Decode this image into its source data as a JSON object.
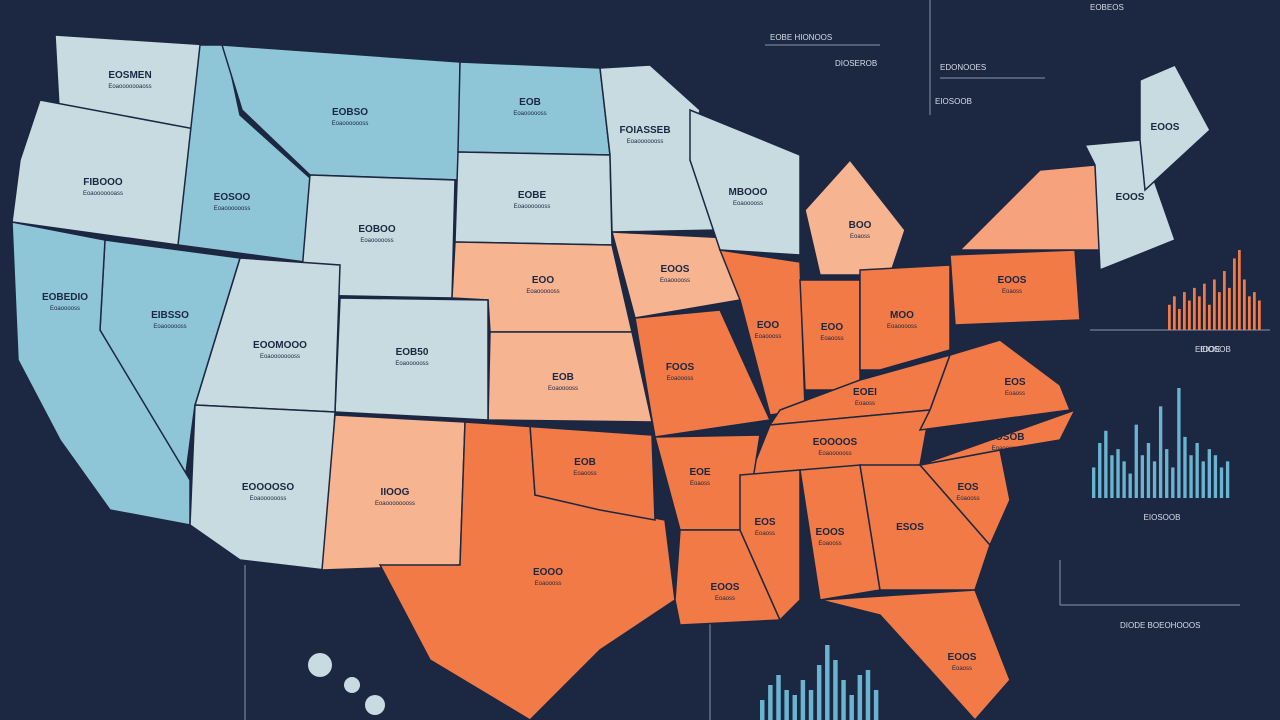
{
  "regions": [
    {
      "label": "EOSMEN",
      "sublabel": "Eoaooooooaoss",
      "color": "#c8dbe0"
    },
    {
      "label": "FIBOOO",
      "sublabel": "Eoaooooooass",
      "color": "#c8dbe0"
    },
    {
      "label": "EOSOO",
      "sublabel": "Eoaooooooss",
      "color": "#8ec6d7"
    },
    {
      "label": "EOBSO",
      "sublabel": "Eoaooooooss",
      "color": "#8ec6d7"
    },
    {
      "label": "EOB",
      "sublabel": "Eoaoooooss",
      "color": "#8ec6d7"
    },
    {
      "label": "EOBE",
      "sublabel": "Eoaooooooss",
      "color": "#c8dbe0"
    },
    {
      "label": "EOBOO",
      "sublabel": "Eoaoooooss",
      "color": "#c8dbe0"
    },
    {
      "label": "EOO",
      "sublabel": "Eoaoooooss",
      "color": "#f6b491"
    },
    {
      "label": "EOB",
      "sublabel": "Eoaooooss",
      "color": "#f6b491"
    },
    {
      "label": "EOB50",
      "sublabel": "Eoaoooooss",
      "color": "#c8dbe0"
    },
    {
      "label": "EOOMOOO",
      "sublabel": "Eoaoooooooss",
      "color": "#c8dbe0"
    },
    {
      "label": "EIBSSO",
      "sublabel": "Eoaoooooss",
      "color": "#8ec6d7"
    },
    {
      "label": "EOBEDIO",
      "sublabel": "Eoaooooss",
      "color": "#8ec6d7"
    },
    {
      "label": "EOOOOSO",
      "sublabel": "Eoaooooooss",
      "color": "#c8dbe0"
    },
    {
      "label": "IIOOG",
      "sublabel": "Eoaoooooooss",
      "color": "#f6b491"
    },
    {
      "label": "EOOO",
      "sublabel": "Eoaoooss",
      "color": "#f27a46"
    },
    {
      "label": "EOB",
      "sublabel": "Eoaooss",
      "color": "#f27a46"
    },
    {
      "label": "FOIASSEB",
      "sublabel": "Eoaooooooss",
      "color": "#c8dbe0"
    },
    {
      "label": "EOOS",
      "sublabel": "Eoaooooss",
      "color": "#f6b491"
    },
    {
      "label": "FOOS",
      "sublabel": "Eoaoooss",
      "color": "#f27a46"
    },
    {
      "label": "MBOOO",
      "sublabel": "Eoaooooss",
      "color": "#c8dbe0"
    },
    {
      "label": "BOO",
      "sublabel": "Eoaoss",
      "color": "#f6b491"
    },
    {
      "label": "EOO",
      "sublabel": "Eoaoooss",
      "color": "#f27a46"
    },
    {
      "label": "EOO",
      "sublabel": "Eoaooss",
      "color": "#f27a46"
    },
    {
      "label": "MOO",
      "sublabel": "Eoaooooss",
      "color": "#f27a46"
    },
    {
      "label": "EOEI",
      "sublabel": "Eoaoss",
      "color": "#f27a46"
    },
    {
      "label": "EOOOOS",
      "sublabel": "Eoaoooooss",
      "color": "#f27a46"
    },
    {
      "label": "EOE",
      "sublabel": "Eoaoss",
      "color": "#f27a46"
    },
    {
      "label": "EOOS",
      "sublabel": "Eoaoss",
      "color": "#f27a46"
    },
    {
      "label": "EOS",
      "sublabel": "Eoaoss",
      "color": "#f27a46"
    },
    {
      "label": "EOOS",
      "sublabel": "Eoaooss",
      "color": "#f27a46"
    },
    {
      "label": "ESOS",
      "sublabel": "",
      "color": "#f27a46"
    },
    {
      "label": "EOOS",
      "sublabel": "Eoaoss",
      "color": "#f27a46"
    },
    {
      "label": "EOS",
      "sublabel": "Eoaooss",
      "color": "#f27a46"
    },
    {
      "label": "EIOSOB",
      "sublabel": "Eoaoooss",
      "color": "#f27a46"
    },
    {
      "label": "EOS",
      "sublabel": "Eoaoss",
      "color": "#f27a46"
    },
    {
      "label": "EOOS",
      "sublabel": "Eoaoss",
      "color": "#f27a46"
    },
    {
      "label": "",
      "sublabel": "",
      "color": "#f6a27c"
    },
    {
      "label": "EOOS",
      "sublabel": "",
      "color": "#c8dbe0"
    },
    {
      "label": "EOOS",
      "sublabel": "",
      "color": "#c8dbe0"
    }
  ],
  "annotations": [
    "EOBE HIONOOS",
    "DIOSEROB",
    "EDONOOES",
    "EIOSOOB",
    "EOBEOS",
    "DIODE BOEOHOOOS",
    "EIOOE"
  ],
  "bar_charts": [
    {
      "color": "#f27a46",
      "caption": "EIOSOB",
      "values": [
        30,
        40,
        25,
        45,
        35,
        50,
        40,
        55,
        30,
        60,
        45,
        70,
        50,
        85,
        95,
        60,
        40,
        45,
        35
      ]
    },
    {
      "color": "#6ab4cf",
      "caption": "EIOSOOB",
      "values": [
        25,
        45,
        55,
        35,
        40,
        30,
        20,
        60,
        35,
        45,
        30,
        75,
        40,
        25,
        90,
        50,
        35,
        45,
        30,
        40,
        35,
        25,
        30
      ]
    },
    {
      "color": "#6ab4cf",
      "caption": "",
      "values": [
        20,
        35,
        45,
        30,
        25,
        40,
        30,
        55,
        75,
        60,
        40,
        25,
        45,
        50,
        30
      ]
    }
  ]
}
